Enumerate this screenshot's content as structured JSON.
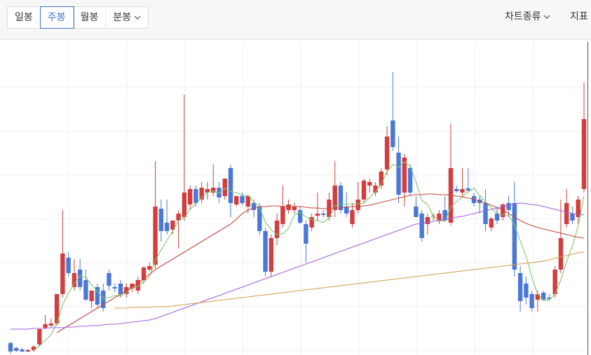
{
  "toolbar": {
    "tabs": [
      "일봉",
      "주봉",
      "월봉",
      "분봉"
    ],
    "active": 1,
    "menus": [
      "차트종류",
      "지표"
    ]
  },
  "chart_data": {
    "type": "candlestick",
    "ylim": [
      0,
      447
    ],
    "grid": true,
    "up_color": "#d43d3d",
    "down_color": "#4a78d8",
    "open": [
      15,
      8,
      6,
      3,
      5,
      13,
      37,
      40,
      43,
      85,
      137,
      95,
      120,
      105,
      75,
      95,
      90,
      115,
      95,
      100,
      85,
      93,
      90,
      105,
      120,
      127,
      207,
      187,
      177,
      190,
      195,
      213,
      235,
      220,
      230,
      230,
      237,
      225,
      265,
      213,
      225,
      210,
      215,
      210,
      175,
      117,
      165,
      185,
      205,
      205,
      205,
      185,
      180,
      197,
      200,
      195,
      205,
      240,
      210,
      185,
      205,
      220,
      240,
      230,
      240,
      263,
      333,
      287,
      230,
      265,
      210,
      200,
      185,
      196,
      190,
      205,
      187,
      235,
      230,
      236,
      225,
      220,
      215,
      180,
      200,
      195,
      215,
      215,
      115,
      100,
      85,
      77,
      87,
      80,
      85,
      120,
      185,
      200,
      195,
      235
    ],
    "high": [
      17,
      10,
      8,
      7,
      12,
      35,
      55,
      50,
      85,
      205,
      145,
      135,
      135,
      120,
      90,
      100,
      100,
      120,
      100,
      105,
      100,
      100,
      110,
      125,
      130,
      275,
      220,
      220,
      190,
      205,
      370,
      240,
      240,
      245,
      245,
      270,
      245,
      250,
      270,
      225,
      230,
      225,
      220,
      215,
      180,
      170,
      200,
      240,
      220,
      215,
      210,
      190,
      200,
      230,
      205,
      230,
      275,
      245,
      230,
      215,
      245,
      250,
      250,
      245,
      265,
      325,
      402,
      310,
      285,
      270,
      225,
      205,
      200,
      200,
      205,
      225,
      328,
      240,
      265,
      265,
      230,
      225,
      235,
      195,
      210,
      215,
      225,
      245,
      125,
      110,
      90,
      90,
      90,
      85,
      125,
      220,
      235,
      210,
      225,
      387
    ],
    "low": [
      0,
      2,
      2,
      2,
      2,
      10,
      35,
      38,
      40,
      80,
      110,
      90,
      90,
      75,
      65,
      65,
      60,
      90,
      88,
      80,
      80,
      88,
      85,
      100,
      118,
      122,
      160,
      170,
      170,
      150,
      190,
      205,
      210,
      215,
      220,
      225,
      215,
      220,
      195,
      210,
      212,
      200,
      195,
      170,
      110,
      110,
      155,
      180,
      200,
      200,
      185,
      130,
      175,
      190,
      195,
      190,
      195,
      200,
      195,
      180,
      200,
      215,
      230,
      225,
      235,
      255,
      290,
      215,
      210,
      225,
      195,
      160,
      170,
      190,
      185,
      190,
      183,
      230,
      225,
      230,
      210,
      200,
      175,
      175,
      185,
      190,
      195,
      110,
      60,
      70,
      60,
      60,
      75,
      75,
      80,
      115,
      180,
      185,
      185,
      230
    ],
    "close": [
      3,
      4,
      3,
      5,
      10,
      35,
      42,
      43,
      85,
      143,
      115,
      115,
      95,
      77,
      90,
      70,
      65,
      97,
      93,
      85,
      95,
      100,
      105,
      123,
      125,
      210,
      175,
      175,
      190,
      200,
      230,
      235,
      215,
      237,
      235,
      237,
      223,
      250,
      215,
      225,
      215,
      225,
      205,
      175,
      117,
      165,
      190,
      210,
      213,
      210,
      187,
      157,
      195,
      200,
      198,
      220,
      240,
      205,
      200,
      205,
      220,
      247,
      245,
      240,
      260,
      310,
      295,
      227,
      280,
      230,
      195,
      165,
      195,
      197,
      200,
      190,
      265,
      232,
      235,
      233,
      215,
      215,
      185,
      193,
      190,
      213,
      205,
      120,
      75,
      80,
      65,
      85,
      77,
      78,
      120,
      165,
      215,
      190,
      220,
      335
    ],
    "lines": [
      {
        "color": "#79c86a",
        "values": [
          null,
          null,
          null,
          null,
          5,
          11,
          19,
          27,
          43,
          70,
          86,
          100,
          111,
          109,
          98,
          89,
          79,
          80,
          83,
          82,
          87,
          94,
          96,
          102,
          110,
          133,
          148,
          162,
          175,
          190,
          194,
          206,
          214,
          223,
          230,
          232,
          229,
          236,
          232,
          230,
          226,
          226,
          217,
          209,
          187,
          177,
          170,
          171,
          179,
          198,
          202,
          195,
          192,
          190,
          187,
          194,
          211,
          213,
          213,
          214,
          214,
          215,
          223,
          231,
          242,
          260,
          270,
          266,
          274,
          268,
          245,
          219,
          213,
          196,
          190,
          189,
          209,
          217,
          224,
          231,
          236,
          226,
          217,
          208,
          200,
          199,
          197,
          184,
          161,
          139,
          109,
          85,
          76,
          77,
          85,
          105,
          131,
          154,
          182,
          225
        ]
      },
      {
        "color": "#c8463f",
        "values": [
          null,
          null,
          null,
          null,
          null,
          null,
          null,
          null,
          30,
          35,
          40,
          45,
          50,
          55,
          60,
          65,
          70,
          75,
          80,
          85,
          90,
          95,
          100,
          107,
          113,
          120,
          125,
          130,
          135,
          140,
          145,
          150,
          155,
          160,
          165,
          170,
          175,
          180,
          185,
          192,
          200,
          205,
          208,
          210,
          210,
          211,
          211,
          210,
          210,
          210,
          210,
          209,
          208,
          208,
          207,
          207,
          208,
          208,
          209,
          210,
          210,
          211,
          212,
          214,
          216,
          218,
          220,
          222,
          224,
          226,
          227,
          227,
          228,
          228,
          227,
          227,
          226,
          225,
          224,
          222,
          220,
          218,
          215,
          212,
          208,
          205,
          200,
          195,
          190,
          186,
          183,
          180,
          178,
          176,
          174,
          172,
          170,
          168,
          166,
          165
        ]
      },
      {
        "color": "#a35fe0",
        "values": [
          35,
          35,
          35,
          35,
          36,
          36,
          36,
          37,
          37,
          37,
          38,
          38,
          39,
          39,
          40,
          40,
          41,
          42,
          42,
          43,
          44,
          45,
          46,
          47,
          48,
          50,
          53,
          56,
          59,
          62,
          65,
          68,
          71,
          74,
          77,
          80,
          83,
          86,
          89,
          92,
          95,
          98,
          101,
          104,
          107,
          110,
          113,
          116,
          119,
          122,
          125,
          128,
          131,
          134,
          137,
          140,
          143,
          146,
          149,
          152,
          155,
          158,
          161,
          164,
          167,
          170,
          173,
          176,
          179,
          182,
          185,
          186,
          187,
          189,
          190,
          192,
          193,
          195,
          196,
          198,
          200,
          202,
          204,
          206,
          208,
          210,
          212,
          214,
          215,
          214,
          213,
          212,
          210,
          208,
          206,
          204,
          202,
          200,
          199,
          198
        ]
      },
      {
        "color": "#da9a4c",
        "values": [
          null,
          null,
          null,
          null,
          null,
          null,
          null,
          null,
          null,
          null,
          null,
          null,
          null,
          null,
          null,
          null,
          null,
          null,
          65,
          65,
          65,
          66,
          66,
          66,
          66,
          67,
          67,
          67,
          68,
          69,
          70,
          71,
          72,
          73,
          74,
          75,
          76,
          77,
          78,
          79,
          80,
          81,
          82,
          83,
          84,
          85,
          86,
          87,
          88,
          89,
          90,
          91,
          92,
          93,
          94,
          95,
          96,
          97,
          98,
          99,
          100,
          101,
          102,
          103,
          104,
          105,
          106,
          107,
          108,
          109,
          110,
          111,
          112,
          113,
          114,
          115,
          116,
          117,
          118,
          119,
          120,
          121,
          122,
          123,
          124,
          125,
          126,
          127,
          128,
          129,
          130,
          131,
          132,
          134,
          136,
          138,
          140,
          142,
          144,
          145
        ]
      }
    ]
  }
}
